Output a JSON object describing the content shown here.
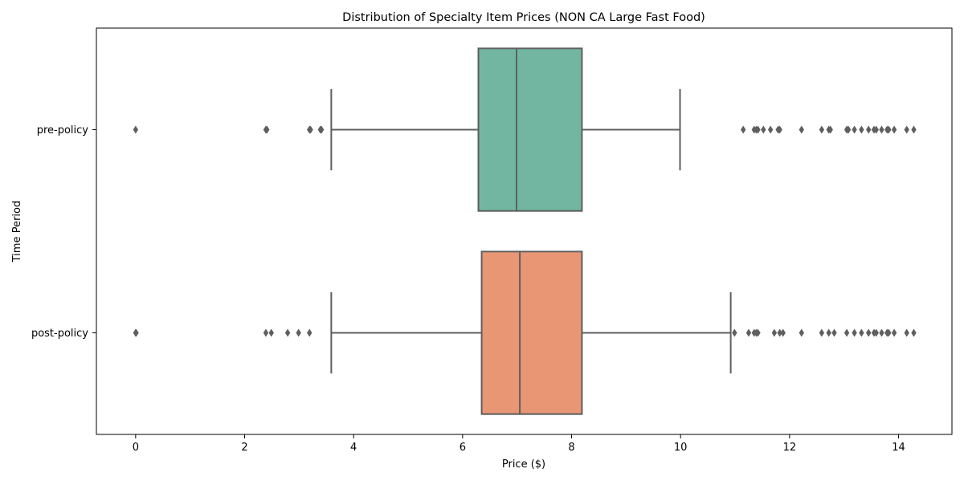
{
  "chart_data": {
    "type": "boxplot",
    "orientation": "horizontal",
    "title": "Distribution of Specialty Item Prices (NON CA Large Fast Food)",
    "xlabel": "Price ($)",
    "ylabel": "Time Period",
    "xlim": [
      -0.72,
      14.98
    ],
    "xticks": [
      0,
      2,
      4,
      6,
      8,
      10,
      12,
      14
    ],
    "grid": false,
    "legend": "none",
    "categories": [
      "pre-policy",
      "post-policy"
    ],
    "series": [
      {
        "name": "pre-policy",
        "color": "#72b6a1",
        "whisker_low": 3.59,
        "q1": 6.29,
        "median": 6.99,
        "q3": 8.19,
        "whisker_high": 9.99,
        "outliers": [
          0.0,
          2.39,
          2.41,
          3.19,
          3.21,
          3.39,
          3.41,
          11.15,
          11.35,
          11.39,
          11.42,
          11.52,
          11.65,
          11.79,
          11.82,
          12.22,
          12.59,
          12.72,
          12.75,
          13.05,
          13.08,
          13.19,
          13.32,
          13.45,
          13.55,
          13.59,
          13.69,
          13.79,
          13.82,
          13.92,
          14.15,
          14.28
        ]
      },
      {
        "name": "post-policy",
        "color": "#e99675",
        "whisker_low": 3.59,
        "q1": 6.35,
        "median": 7.05,
        "q3": 8.19,
        "whisker_high": 10.92,
        "outliers": [
          0.0,
          0.01,
          2.39,
          2.49,
          2.79,
          2.99,
          3.19,
          10.99,
          11.25,
          11.35,
          11.39,
          11.42,
          11.72,
          11.82,
          11.88,
          12.22,
          12.59,
          12.72,
          12.82,
          13.05,
          13.19,
          13.32,
          13.45,
          13.55,
          13.59,
          13.69,
          13.79,
          13.82,
          13.92,
          14.15,
          14.28
        ]
      }
    ]
  }
}
